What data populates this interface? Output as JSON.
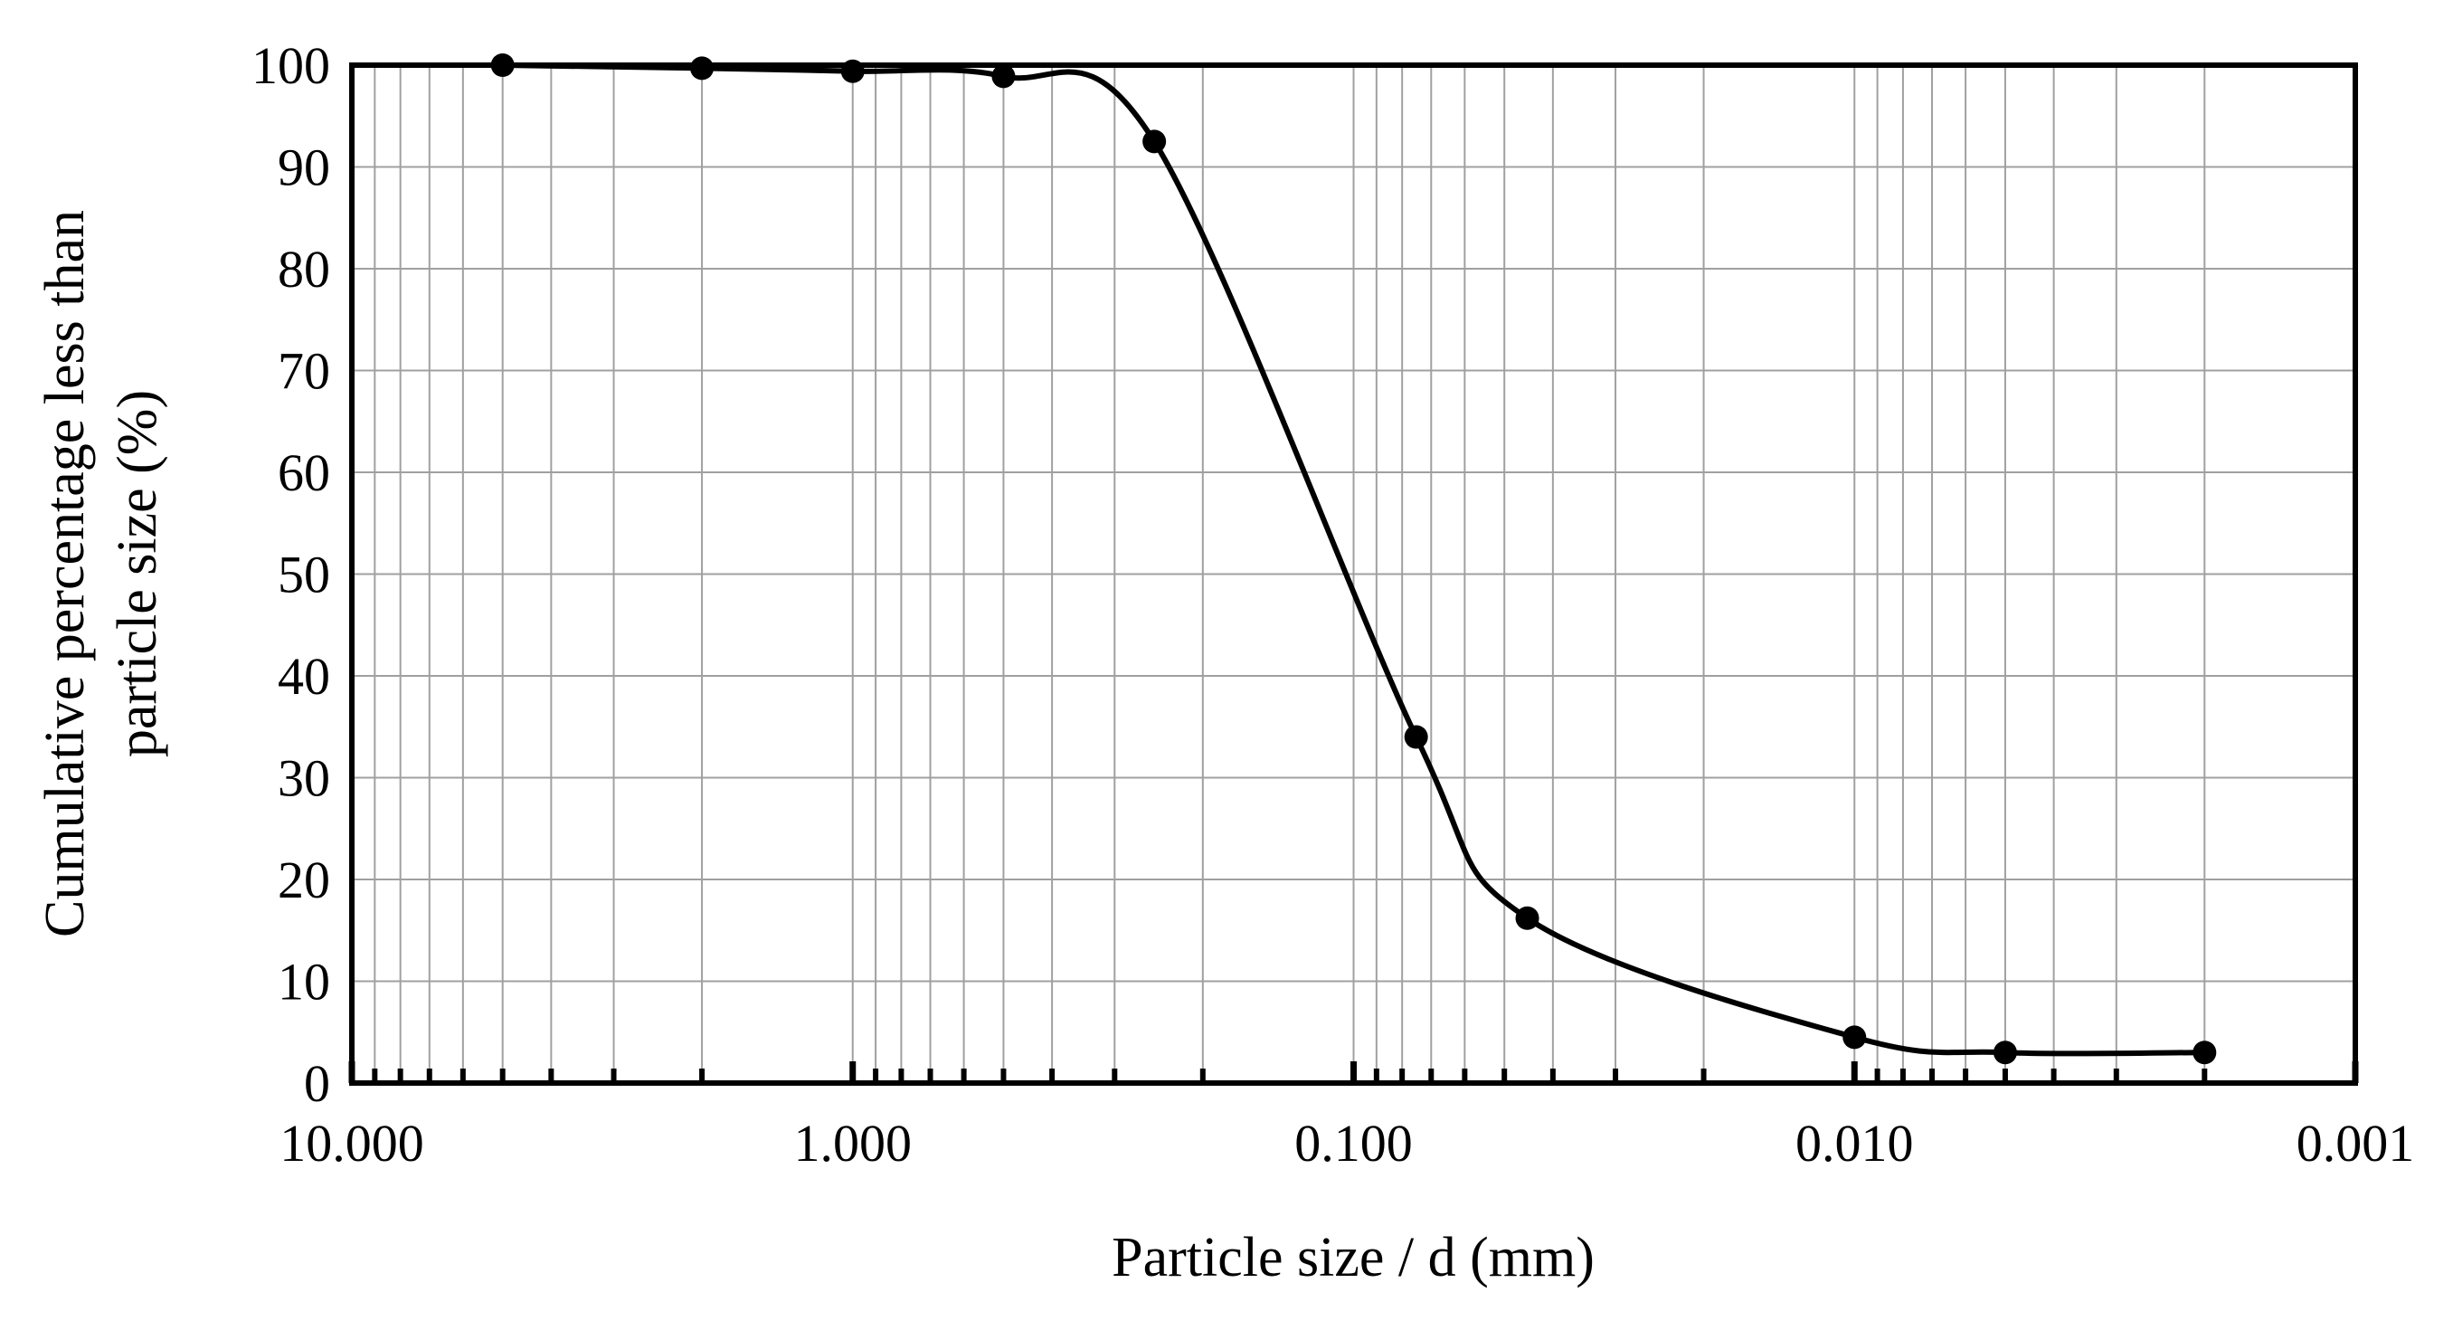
{
  "chart_data": {
    "type": "scatter",
    "xlabel": "Particle size / d (mm)",
    "ylabel_lines": [
      "Cumulative percentage less than",
      "particle size  (%)"
    ],
    "x_scale": "log",
    "x_reversed": true,
    "xlim": [
      10,
      0.001
    ],
    "ylim": [
      0,
      100
    ],
    "x_ticks": [
      10,
      1,
      0.1,
      0.01,
      0.001
    ],
    "x_tick_labels": [
      "10.000",
      "1.000",
      "0.100",
      "0.010",
      "0.001"
    ],
    "y_ticks": [
      0,
      10,
      20,
      30,
      40,
      50,
      60,
      70,
      80,
      90,
      100
    ],
    "y_tick_labels": [
      "0",
      "10",
      "20",
      "30",
      "40",
      "50",
      "60",
      "70",
      "80",
      "90",
      "100"
    ],
    "grid": true,
    "smooth_line": true,
    "series": [
      {
        "x": [
          5,
          2,
          1,
          0.5,
          0.25,
          0.075,
          0.045,
          0.01,
          0.005,
          0.002
        ],
        "y": [
          100,
          99.7,
          99.4,
          98.9,
          92.5,
          34,
          16.2,
          4.5,
          3,
          3
        ],
        "color": "#000000"
      }
    ]
  }
}
